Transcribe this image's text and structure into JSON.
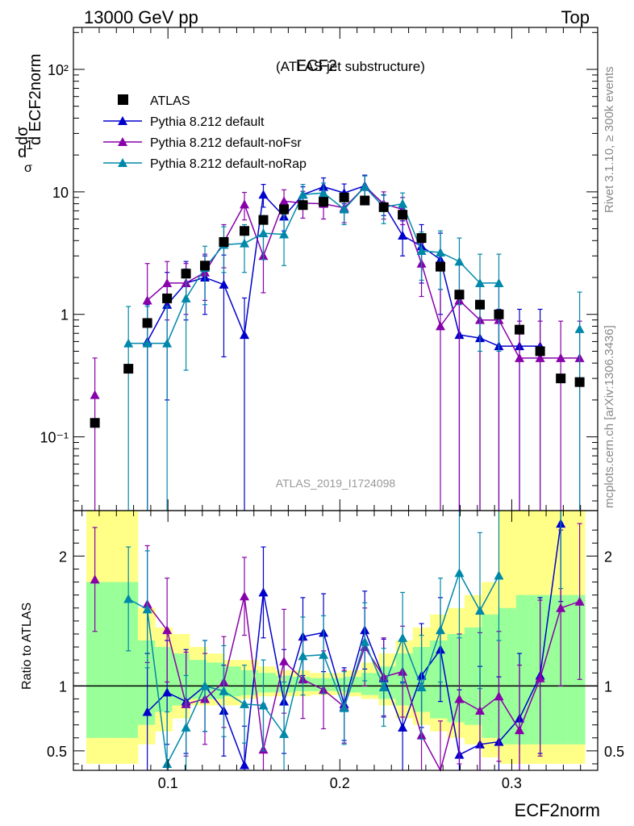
{
  "header": {
    "left": "13000 GeV pp",
    "right": "Top"
  },
  "title": {
    "main": "ECF2",
    "sub": "(ATLAS jet substructure)"
  },
  "side_labels": {
    "rivet": "Rivet 3.1.10, ≥ 300k events",
    "mcplots": "mcplots.cern.ch [arXiv:1306.3436]"
  },
  "analysis_id": "ATLAS_2019_I1724098",
  "ylabel_main": {
    "prefix": "1",
    "sigma": "σ",
    "num": "dσ",
    "den": "d ECF2norm"
  },
  "ylabel_ratio": "Ratio to ATLAS",
  "xlabel": "ECF2norm",
  "colors": {
    "data": "#000000",
    "default": "#0000cc",
    "noFsr": "#8800aa",
    "noRap": "#0088aa",
    "band_yellow": "#ffff88",
    "band_green": "#99ff99"
  },
  "chart_data": {
    "type": "line",
    "title": "ECF2 (ATLAS jet substructure)",
    "xlabel": "ECF2norm",
    "ylabel": "1/σ dσ/d ECF2norm",
    "xlim": [
      0.045,
      0.35
    ],
    "ylim_main": [
      0.025,
      220
    ],
    "yscale_main": "log",
    "ylim_ratio": [
      0.35,
      2.35
    ],
    "x_ticks": [
      0.1,
      0.2,
      0.3
    ],
    "x_tick_labels": [
      "0.1",
      "0.2",
      "0.3"
    ],
    "y_ticks_main": [
      0.1,
      1,
      10,
      100
    ],
    "y_tick_labels_main": [
      "10⁻¹",
      "1",
      "10",
      "10²"
    ],
    "y_ticks_ratio": [
      0.5,
      1,
      2
    ],
    "y_tick_labels_ratio": [
      "0.5",
      "1",
      "2"
    ],
    "bin_edges": [
      0.0525,
      0.0625,
      0.0725,
      0.0825,
      0.0925,
      0.1025,
      0.1125,
      0.1225,
      0.1325,
      0.1425,
      0.1525,
      0.1625,
      0.1725,
      0.1825,
      0.1925,
      0.2025,
      0.2125,
      0.2225,
      0.2325,
      0.2425,
      0.2525,
      0.2625,
      0.2725,
      0.2825,
      0.2925,
      0.3025,
      0.3125,
      0.3225,
      0.3325,
      0.3425
    ],
    "x": [
      0.0575,
      0.077,
      0.088,
      0.0995,
      0.1105,
      0.1215,
      0.1325,
      0.1445,
      0.1555,
      0.1675,
      0.1785,
      0.1905,
      0.2025,
      0.2145,
      0.2255,
      0.2365,
      0.2475,
      0.2585,
      0.2695,
      0.2815,
      0.2925,
      0.3045,
      0.3165,
      0.3285,
      0.3395
    ],
    "legend": [
      "ATLAS",
      "Pythia 8.212 default",
      "Pythia 8.212 default-noFsr",
      "Pythia 8.212 default-noRap"
    ],
    "legend_position": "top-left",
    "series": [
      {
        "name": "ATLAS",
        "style": "marker",
        "values": [
          0.13,
          0.36,
          0.85,
          1.35,
          2.15,
          2.5,
          3.9,
          4.8,
          5.9,
          7.2,
          7.8,
          8.3,
          9.0,
          8.5,
          7.5,
          6.5,
          4.2,
          2.45,
          1.45,
          1.2,
          1.0,
          0.75,
          0.5,
          0.3,
          0.28
        ]
      },
      {
        "name": "Pythia 8.212 default",
        "style": "line",
        "values": [
          null,
          null,
          0.6,
          1.2,
          1.8,
          2.0,
          1.75,
          0.68,
          9.5,
          6.3,
          9.5,
          11.0,
          9.8,
          11.2,
          7.9,
          4.4,
          3.6,
          2.8,
          0.68,
          0.64,
          0.55,
          0.55,
          0.55,
          null,
          null
        ],
        "errors": [
          null,
          null,
          0.6,
          1.0,
          0.9,
          1.0,
          1.3,
          0.68,
          2.0,
          1.5,
          1.5,
          2.0,
          1.8,
          2.5,
          1.5,
          1.4,
          1.8,
          1.8,
          0.68,
          0.64,
          0.55,
          0.55,
          0.55,
          null,
          null
        ]
      },
      {
        "name": "Pythia 8.212 default-noFsr",
        "style": "line",
        "values": [
          0.22,
          null,
          1.3,
          1.8,
          1.8,
          2.2,
          3.9,
          7.9,
          3.0,
          8.4,
          8.1,
          8.0,
          7.4,
          11.0,
          8.0,
          7.2,
          2.6,
          0.8,
          1.3,
          0.9,
          0.9,
          0.44,
          0.44,
          0.44,
          0.44
        ],
        "errors": [
          0.22,
          null,
          1.3,
          0.9,
          0.8,
          0.9,
          1.5,
          2.0,
          1.5,
          2.0,
          2.0,
          2.0,
          1.8,
          2.5,
          2.0,
          1.8,
          1.2,
          0.8,
          1.3,
          0.9,
          0.9,
          0.44,
          0.44,
          0.44,
          0.44
        ]
      },
      {
        "name": "Pythia 8.212 default-noRap",
        "style": "line",
        "values": [
          null,
          0.58,
          0.58,
          0.58,
          1.35,
          2.4,
          3.7,
          3.8,
          4.6,
          4.5,
          9.5,
          9.8,
          7.2,
          11.0,
          7.5,
          8.0,
          3.3,
          3.2,
          2.7,
          1.8,
          1.8,
          null,
          null,
          null,
          0.76
        ],
        "errors": [
          null,
          0.58,
          0.58,
          0.58,
          1.0,
          1.2,
          1.5,
          1.6,
          1.8,
          2.0,
          2.0,
          2.0,
          1.8,
          2.5,
          2.0,
          1.8,
          1.4,
          1.6,
          1.5,
          1.3,
          1.3,
          null,
          null,
          null,
          0.76
        ]
      }
    ],
    "ratio_series": [
      {
        "name": "Pythia 8.212 default",
        "values": [
          null,
          null,
          0.8,
          0.95,
          0.88,
          1.0,
          0.81,
          0.39,
          1.72,
          0.88,
          1.38,
          1.41,
          0.86,
          1.43,
          1.06,
          0.68,
          1.08,
          1.28,
          0.47,
          0.55,
          0.57,
          0.75,
          1.08,
          2.25,
          null
        ]
      },
      {
        "name": "Pythia 8.212 default-noFsr",
        "values": [
          1.82,
          null,
          1.63,
          1.43,
          0.86,
          0.9,
          1.03,
          1.69,
          0.51,
          1.19,
          1.05,
          0.97,
          0.84,
          1.3,
          1.07,
          1.11,
          0.62,
          0.33,
          0.9,
          0.81,
          0.92,
          0.66,
          1.06,
          1.6,
          1.65
        ]
      },
      {
        "name": "Pythia 8.212 default-noRap",
        "values": [
          null,
          1.67,
          1.59,
          0.4,
          0.68,
          1.0,
          0.96,
          0.86,
          0.85,
          0.63,
          1.23,
          1.24,
          0.83,
          1.34,
          0.99,
          1.37,
          0.99,
          1.43,
          1.87,
          1.58,
          1.85,
          null,
          null,
          2.35,
          null
        ]
      }
    ],
    "ratio_errors": [
      0.4,
      0.4,
      0.45,
      0.4,
      0.4,
      0.35,
      0.35,
      0.3,
      0.35,
      0.4,
      0.3,
      0.3,
      0.28,
      0.3,
      0.3,
      0.35,
      0.4,
      0.4,
      0.5,
      0.6,
      0.5,
      0.5,
      0.6,
      0.6,
      0.6
    ],
    "band_yellow": [
      [
        0.4,
        2.4
      ],
      [
        0.4,
        2.4
      ],
      [
        0.4,
        2.4
      ],
      [
        0.55,
        1.6
      ],
      [
        0.65,
        1.45
      ],
      [
        0.75,
        1.4
      ],
      [
        0.85,
        1.3
      ],
      [
        0.85,
        1.25
      ],
      [
        0.85,
        1.2
      ],
      [
        0.9,
        1.2
      ],
      [
        0.92,
        1.15
      ],
      [
        0.92,
        1.12
      ],
      [
        0.92,
        1.12
      ],
      [
        0.93,
        1.1
      ],
      [
        0.93,
        1.1
      ],
      [
        0.92,
        1.12
      ],
      [
        0.9,
        1.18
      ],
      [
        0.85,
        1.25
      ],
      [
        0.75,
        1.35
      ],
      [
        0.7,
        1.45
      ],
      [
        0.65,
        1.55
      ],
      [
        0.6,
        1.6
      ],
      [
        0.55,
        1.7
      ],
      [
        0.45,
        1.8
      ],
      [
        0.4,
        2.4
      ],
      [
        0.4,
        2.4
      ],
      [
        0.4,
        2.4
      ],
      [
        0.4,
        2.4
      ],
      [
        0.4,
        2.4
      ]
    ],
    "band_green": [
      [
        0.6,
        1.8
      ],
      [
        0.6,
        1.8
      ],
      [
        0.6,
        1.8
      ],
      [
        0.7,
        1.35
      ],
      [
        0.8,
        1.3
      ],
      [
        0.85,
        1.25
      ],
      [
        0.9,
        1.2
      ],
      [
        0.9,
        1.18
      ],
      [
        0.92,
        1.15
      ],
      [
        0.93,
        1.12
      ],
      [
        0.95,
        1.1
      ],
      [
        0.95,
        1.08
      ],
      [
        0.96,
        1.07
      ],
      [
        0.96,
        1.06
      ],
      [
        0.96,
        1.06
      ],
      [
        0.95,
        1.07
      ],
      [
        0.93,
        1.1
      ],
      [
        0.9,
        1.15
      ],
      [
        0.85,
        1.25
      ],
      [
        0.8,
        1.3
      ],
      [
        0.75,
        1.35
      ],
      [
        0.72,
        1.4
      ],
      [
        0.7,
        1.45
      ],
      [
        0.6,
        1.55
      ],
      [
        0.55,
        1.6
      ],
      [
        0.55,
        1.7
      ],
      [
        0.55,
        1.7
      ],
      [
        0.55,
        1.7
      ],
      [
        0.55,
        1.7
      ]
    ]
  }
}
